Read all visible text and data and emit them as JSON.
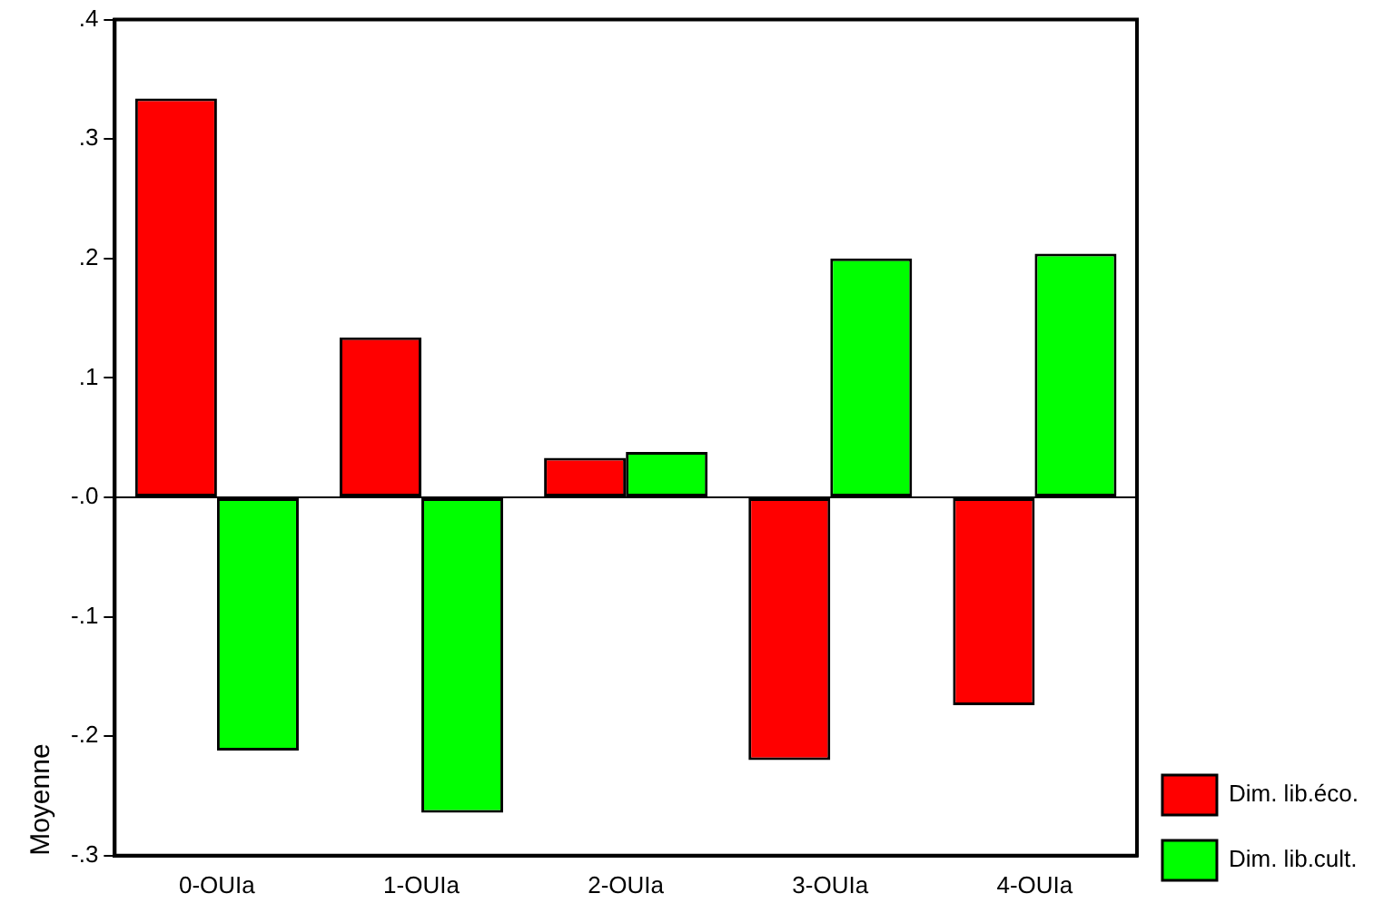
{
  "chart_data": {
    "type": "bar",
    "ylabel": "Moyenne",
    "categories": [
      "0-OUIa",
      "1-OUIa",
      "2-OUIa",
      "3-OUIa",
      "4-OUIa"
    ],
    "series": [
      {
        "name": "Dim. lib.éco.",
        "color": "#ff0000",
        "values": [
          0.334,
          0.134,
          0.033,
          -0.22,
          -0.174
        ]
      },
      {
        "name": "Dim. lib.cult.",
        "color": "#00ff00",
        "values": [
          -0.212,
          -0.264,
          0.038,
          0.2,
          0.204
        ]
      }
    ],
    "ylim": [
      -0.3,
      0.4
    ],
    "yticks": [
      {
        "value": 0.4,
        "label": ".4"
      },
      {
        "value": 0.3,
        "label": ".3"
      },
      {
        "value": 0.2,
        "label": ".2"
      },
      {
        "value": 0.1,
        "label": ".1"
      },
      {
        "value": 0,
        "label": "-.0"
      },
      {
        "value": -0.1,
        "label": "-.1"
      },
      {
        "value": -0.2,
        "label": "-.2"
      },
      {
        "value": -0.3,
        "label": "-.3"
      }
    ],
    "ref_lines": [
      {
        "axis": "y",
        "value": 0,
        "color": "#000000"
      }
    ],
    "grid": false,
    "legend": "bottom right"
  }
}
